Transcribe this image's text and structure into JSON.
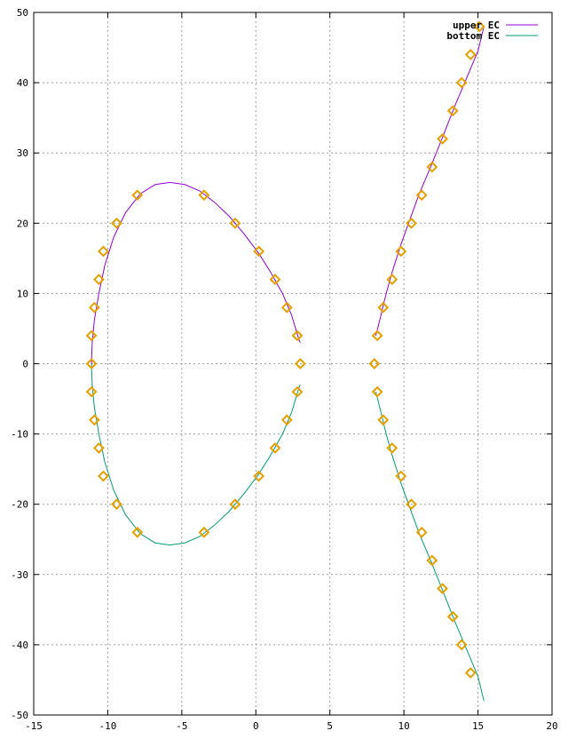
{
  "chart_data": {
    "type": "line",
    "title": "",
    "xlabel": "",
    "ylabel": "",
    "xlim": [
      -15,
      20
    ],
    "ylim": [
      -50,
      50
    ],
    "x_ticks": [
      -15,
      -10,
      -5,
      0,
      5,
      10,
      15,
      20
    ],
    "y_ticks": [
      -50,
      -40,
      -30,
      -20,
      -10,
      0,
      10,
      20,
      30,
      40,
      50
    ],
    "grid": true,
    "legend_position": "top-right",
    "curve": {
      "a": -158,
      "b": 700
    },
    "series": [
      {
        "name": "upper EC",
        "color": "#9400d3",
        "segments": [
          [
            [
              -11.1,
              0.0
            ],
            [
              -11.05,
              3.0
            ],
            [
              -10.9,
              6.3
            ],
            [
              -10.6,
              10.0
            ],
            [
              -10.2,
              14.0
            ],
            [
              -9.6,
              18.0
            ],
            [
              -8.8,
              21.5
            ],
            [
              -7.8,
              24.2
            ],
            [
              -6.8,
              25.5
            ],
            [
              -5.8,
              25.8
            ],
            [
              -4.8,
              25.5
            ],
            [
              -3.8,
              24.6
            ],
            [
              -2.8,
              23.0
            ],
            [
              -1.8,
              21.0
            ],
            [
              -0.8,
              18.5
            ],
            [
              0.2,
              15.7
            ],
            [
              1.0,
              13.0
            ],
            [
              1.8,
              10.0
            ],
            [
              2.4,
              7.0
            ],
            [
              2.9,
              3.5
            ],
            [
              3.0,
              3.0
            ]
          ],
          [
            [
              8.1,
              4.0
            ],
            [
              8.4,
              6.5
            ],
            [
              8.8,
              10.0
            ],
            [
              9.2,
              13.0
            ],
            [
              9.8,
              17.0
            ],
            [
              10.4,
              20.5
            ],
            [
              11.0,
              24.0
            ],
            [
              11.8,
              28.0
            ],
            [
              12.6,
              32.2
            ],
            [
              13.4,
              36.5
            ],
            [
              14.2,
              40.5
            ],
            [
              15.0,
              44.5
            ],
            [
              15.4,
              48.0
            ]
          ]
        ]
      },
      {
        "name": "bottom EC",
        "color": "#009e73",
        "segments": [
          [
            [
              -11.1,
              0.0
            ],
            [
              -11.05,
              -3.0
            ],
            [
              -10.9,
              -6.3
            ],
            [
              -10.6,
              -10.0
            ],
            [
              -10.2,
              -14.0
            ],
            [
              -9.6,
              -18.0
            ],
            [
              -8.8,
              -21.5
            ],
            [
              -7.8,
              -24.2
            ],
            [
              -6.8,
              -25.5
            ],
            [
              -5.8,
              -25.8
            ],
            [
              -4.8,
              -25.5
            ],
            [
              -3.8,
              -24.6
            ],
            [
              -2.8,
              -23.0
            ],
            [
              -1.8,
              -21.0
            ],
            [
              -0.8,
              -18.5
            ],
            [
              0.2,
              -15.7
            ],
            [
              1.0,
              -13.0
            ],
            [
              1.8,
              -10.0
            ],
            [
              2.4,
              -7.0
            ],
            [
              2.9,
              -3.5
            ],
            [
              3.0,
              -3.0
            ]
          ],
          [
            [
              8.1,
              -4.0
            ],
            [
              8.4,
              -6.5
            ],
            [
              8.8,
              -10.0
            ],
            [
              9.2,
              -13.0
            ],
            [
              9.8,
              -17.0
            ],
            [
              10.4,
              -20.5
            ],
            [
              11.0,
              -24.0
            ],
            [
              11.8,
              -28.0
            ],
            [
              12.6,
              -32.2
            ],
            [
              13.4,
              -36.5
            ],
            [
              14.2,
              -40.5
            ],
            [
              15.0,
              -44.5
            ],
            [
              15.4,
              -48.0
            ]
          ]
        ]
      }
    ],
    "markers": {
      "shape": "diamond",
      "color": "#e69f00",
      "points": [
        [
          -11.1,
          0
        ],
        [
          -11.1,
          4
        ],
        [
          -11.1,
          -4
        ],
        [
          -10.9,
          8
        ],
        [
          -10.9,
          -8
        ],
        [
          -10.6,
          12
        ],
        [
          -10.6,
          -12
        ],
        [
          -10.3,
          16
        ],
        [
          -10.3,
          -16
        ],
        [
          -9.4,
          20
        ],
        [
          -9.4,
          -20
        ],
        [
          -8.0,
          24
        ],
        [
          -8.0,
          -24
        ],
        [
          -3.5,
          24
        ],
        [
          -3.5,
          -24
        ],
        [
          -1.4,
          20
        ],
        [
          -1.4,
          -20
        ],
        [
          0.2,
          16
        ],
        [
          0.2,
          -16
        ],
        [
          1.3,
          12
        ],
        [
          1.3,
          -12
        ],
        [
          2.1,
          8
        ],
        [
          2.1,
          -8
        ],
        [
          2.8,
          4
        ],
        [
          2.8,
          -4
        ],
        [
          3.0,
          0
        ],
        [
          8.0,
          0
        ],
        [
          8.2,
          4
        ],
        [
          8.2,
          -4
        ],
        [
          8.6,
          8
        ],
        [
          8.6,
          -8
        ],
        [
          9.2,
          12
        ],
        [
          9.2,
          -12
        ],
        [
          9.8,
          16
        ],
        [
          9.8,
          -16
        ],
        [
          10.5,
          20
        ],
        [
          10.5,
          -20
        ],
        [
          11.2,
          24
        ],
        [
          11.2,
          -24
        ],
        [
          11.9,
          28
        ],
        [
          11.9,
          -28
        ],
        [
          12.6,
          32
        ],
        [
          12.6,
          -32
        ],
        [
          13.3,
          36
        ],
        [
          13.3,
          -36
        ],
        [
          13.9,
          40
        ],
        [
          13.9,
          -40
        ],
        [
          14.5,
          44
        ],
        [
          14.5,
          -44
        ],
        [
          15.1,
          48
        ]
      ]
    }
  }
}
